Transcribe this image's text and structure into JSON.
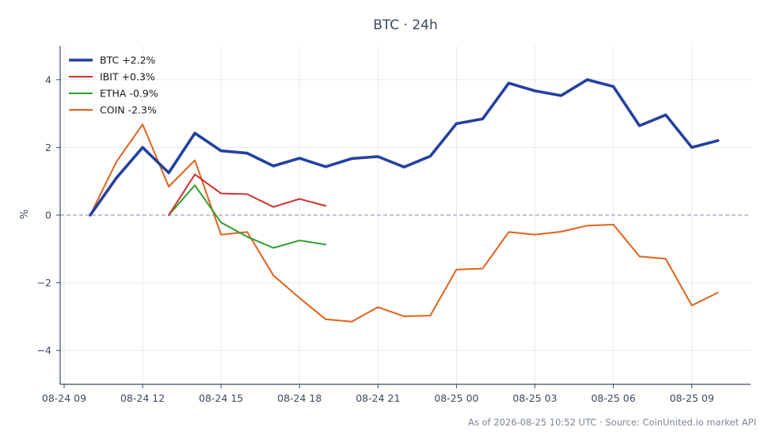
{
  "chart_data": {
    "type": "line",
    "title": "BTC · 24h",
    "xlabel": "",
    "ylabel": "%",
    "xlim": [
      "2026-08-24 09:00",
      "2026-08-25 11:15"
    ],
    "ylim": [
      -5,
      5
    ],
    "x_ticks": [
      "2026-08-24 09:00",
      "2026-08-24 12:00",
      "2026-08-24 15:00",
      "2026-08-24 18:00",
      "2026-08-24 21:00",
      "2026-08-25 00:00",
      "2026-08-25 03:00",
      "2026-08-25 06:00",
      "2026-08-25 09:00"
    ],
    "x_tick_labels": [
      "08-24 09",
      "08-24 12",
      "08-24 15",
      "08-24 18",
      "08-24 21",
      "08-25 00",
      "08-25 03",
      "08-25 06",
      "08-25 09"
    ],
    "y_ticks": [
      -4,
      -2,
      0,
      2,
      4
    ],
    "y_tick_labels": [
      "−4",
      "−2",
      "0",
      "2",
      "4"
    ],
    "grid": true,
    "zero_reference_line": true,
    "legend_position": "top-left",
    "series": [
      {
        "name": "BTC +2.2%",
        "color": "#2441a0",
        "x": [
          "2026-08-24 10:00",
          "2026-08-24 11:00",
          "2026-08-24 12:00",
          "2026-08-24 13:00",
          "2026-08-24 14:00",
          "2026-08-24 15:00",
          "2026-08-24 16:00",
          "2026-08-24 17:00",
          "2026-08-24 18:00",
          "2026-08-24 19:00",
          "2026-08-24 20:00",
          "2026-08-24 21:00",
          "2026-08-24 22:00",
          "2026-08-24 23:00",
          "2026-08-25 00:00",
          "2026-08-25 01:00",
          "2026-08-25 02:00",
          "2026-08-25 03:00",
          "2026-08-25 04:00",
          "2026-08-25 05:00",
          "2026-08-25 06:00",
          "2026-08-25 07:00",
          "2026-08-25 08:00",
          "2026-08-25 09:00",
          "2026-08-25 10:00"
        ],
        "values": [
          0.0,
          1.1,
          2.0,
          1.25,
          2.42,
          1.9,
          1.83,
          1.45,
          1.68,
          1.43,
          1.67,
          1.73,
          1.42,
          1.74,
          2.7,
          2.84,
          3.9,
          3.67,
          3.53,
          4.0,
          3.8,
          2.64,
          2.96,
          2.0,
          2.2
        ]
      },
      {
        "name": "IBIT +0.3%",
        "color": "#d0312d",
        "x": [
          "2026-08-24 13:00",
          "2026-08-24 14:00",
          "2026-08-24 15:00",
          "2026-08-24 16:00",
          "2026-08-24 17:00",
          "2026-08-24 18:00",
          "2026-08-24 19:00"
        ],
        "values": [
          0.0,
          1.2,
          0.64,
          0.62,
          0.24,
          0.48,
          0.27
        ]
      },
      {
        "name": "ETHA -0.9%",
        "color": "#2ca02c",
        "x": [
          "2026-08-24 13:00",
          "2026-08-24 14:00",
          "2026-08-24 15:00",
          "2026-08-24 16:00",
          "2026-08-24 17:00",
          "2026-08-24 18:00",
          "2026-08-24 19:00"
        ],
        "values": [
          0.0,
          0.88,
          -0.22,
          -0.64,
          -0.97,
          -0.75,
          -0.87
        ]
      },
      {
        "name": "COIN -2.3%",
        "color": "#e0621b",
        "x": [
          "2026-08-24 10:00",
          "2026-08-24 11:00",
          "2026-08-24 12:00",
          "2026-08-24 13:00",
          "2026-08-24 14:00",
          "2026-08-24 15:00",
          "2026-08-24 16:00",
          "2026-08-24 17:00",
          "2026-08-24 18:00",
          "2026-08-24 19:00",
          "2026-08-24 20:00",
          "2026-08-24 21:00",
          "2026-08-24 22:00",
          "2026-08-24 23:00",
          "2026-08-25 00:00",
          "2026-08-25 01:00",
          "2026-08-25 02:00",
          "2026-08-25 03:00",
          "2026-08-25 04:00",
          "2026-08-25 05:00",
          "2026-08-25 06:00",
          "2026-08-25 07:00",
          "2026-08-25 08:00",
          "2026-08-25 09:00",
          "2026-08-25 10:00"
        ],
        "values": [
          0.0,
          1.58,
          2.68,
          0.84,
          1.62,
          -0.58,
          -0.5,
          -1.78,
          -2.45,
          -3.08,
          -3.15,
          -2.72,
          -2.99,
          -2.97,
          -1.61,
          -1.58,
          -0.5,
          -0.58,
          -0.49,
          -0.31,
          -0.28,
          -1.22,
          -1.29,
          -2.67,
          -2.29
        ]
      }
    ],
    "footer": "As of 2026-08-25 10:52 UTC · Source: CoinUnited.io market API"
  }
}
